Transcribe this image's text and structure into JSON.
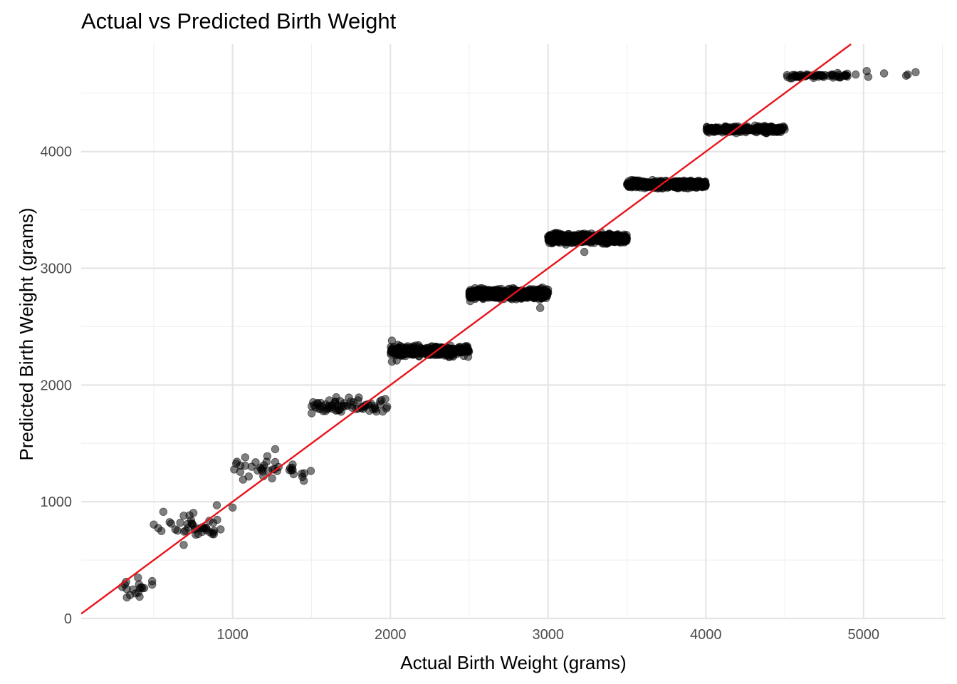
{
  "chart_data": {
    "type": "scatter",
    "title": "Actual vs Predicted Birth Weight",
    "xlabel": "Actual Birth Weight (grams)",
    "ylabel": "Predicted Birth Weight (grams)",
    "xlim": [
      40,
      5520
    ],
    "ylim": [
      0,
      4920
    ],
    "x_ticks": [
      1000,
      2000,
      3000,
      4000,
      5000
    ],
    "x_tick_labels": [
      "1000",
      "2000",
      "3000",
      "4000",
      "5000"
    ],
    "y_ticks": [
      0,
      1000,
      2000,
      3000,
      4000
    ],
    "y_tick_labels": [
      "0",
      "1000",
      "2000",
      "3000",
      "4000"
    ],
    "grid": true,
    "legend": "none",
    "point_color": "#000000",
    "point_opacity": 0.5,
    "reference_line": {
      "type": "y = x",
      "color": "#e8141c"
    },
    "clusters": [
      {
        "x_range": [
          300,
          500
        ],
        "y_center": 250,
        "y_spread": 70,
        "count": 10
      },
      {
        "x_range": [
          500,
          1000
        ],
        "y_center": 780,
        "y_spread": 90,
        "count": 40
      },
      {
        "x_range": [
          1000,
          1500
        ],
        "y_center": 1280,
        "y_spread": 80,
        "count": 35
      },
      {
        "x_range": [
          1500,
          2000
        ],
        "y_center": 1820,
        "y_spread": 60,
        "count": 70
      },
      {
        "x_range": [
          2000,
          2500
        ],
        "y_center": 2290,
        "y_spread": 45,
        "count": 300
      },
      {
        "x_range": [
          2500,
          3000
        ],
        "y_center": 2780,
        "y_spread": 40,
        "count": 600
      },
      {
        "x_range": [
          3000,
          3500
        ],
        "y_center": 3255,
        "y_spread": 35,
        "count": 700
      },
      {
        "x_range": [
          3500,
          4000
        ],
        "y_center": 3720,
        "y_spread": 30,
        "count": 500
      },
      {
        "x_range": [
          4000,
          4500
        ],
        "y_center": 4190,
        "y_spread": 25,
        "count": 250
      },
      {
        "x_range": [
          4500,
          4900
        ],
        "y_center": 4650,
        "y_spread": 20,
        "count": 60
      }
    ],
    "outliers": [
      {
        "x": 5020,
        "y": 4690
      },
      {
        "x": 5030,
        "y": 4640
      },
      {
        "x": 5130,
        "y": 4670
      },
      {
        "x": 5280,
        "y": 4660
      },
      {
        "x": 5330,
        "y": 4680
      },
      {
        "x": 5270,
        "y": 4650
      },
      {
        "x": 4950,
        "y": 4660
      },
      {
        "x": 4880,
        "y": 4650
      }
    ],
    "specific_points": [
      {
        "x": 300,
        "y": 270
      },
      {
        "x": 330,
        "y": 180
      },
      {
        "x": 350,
        "y": 200
      },
      {
        "x": 400,
        "y": 350
      },
      {
        "x": 400,
        "y": 220
      },
      {
        "x": 440,
        "y": 260
      },
      {
        "x": 490,
        "y": 320
      },
      {
        "x": 490,
        "y": 290
      },
      {
        "x": 690,
        "y": 880
      },
      {
        "x": 690,
        "y": 630
      },
      {
        "x": 900,
        "y": 970
      },
      {
        "x": 1000,
        "y": 950
      },
      {
        "x": 1270,
        "y": 1450
      },
      {
        "x": 1270,
        "y": 1340
      },
      {
        "x": 1080,
        "y": 1380
      },
      {
        "x": 1220,
        "y": 1390
      },
      {
        "x": 1250,
        "y": 1200
      },
      {
        "x": 2010,
        "y": 2380
      },
      {
        "x": 2010,
        "y": 2200
      },
      {
        "x": 2040,
        "y": 2210
      },
      {
        "x": 2950,
        "y": 2660
      },
      {
        "x": 3230,
        "y": 3140
      }
    ]
  }
}
